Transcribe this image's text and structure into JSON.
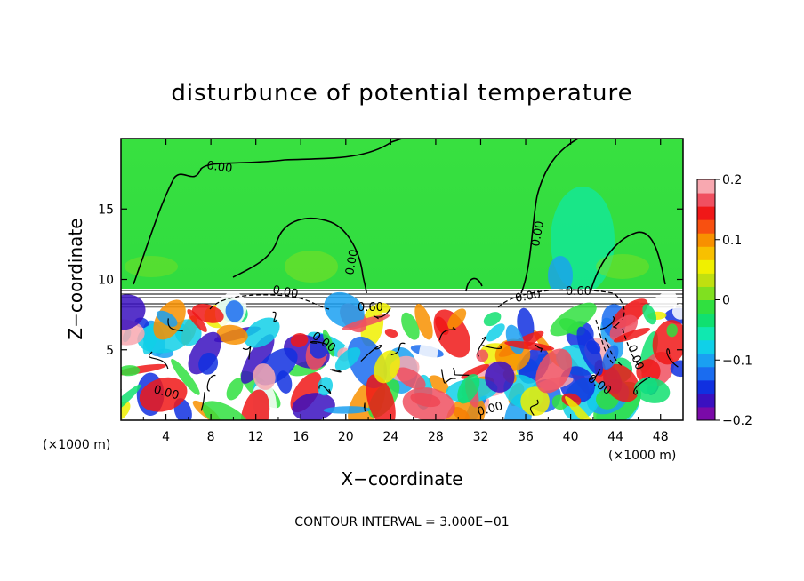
{
  "chart_data": {
    "type": "heatmap",
    "title": "disturbunce of potential temperature",
    "xlabel": "X−coordinate",
    "ylabel": "Z−coordinate",
    "x_unit": "(×1000 m)",
    "z_unit": "(×1000 m)",
    "xlim": [
      0,
      50
    ],
    "ylim": [
      0,
      20
    ],
    "x_ticks": [
      4,
      8,
      12,
      16,
      20,
      24,
      28,
      32,
      36,
      40,
      44,
      48
    ],
    "y_ticks": [
      5,
      10,
      15
    ],
    "x_tick_labels": [
      "4",
      "8",
      "12",
      "16",
      "20",
      "24",
      "28",
      "32",
      "36",
      "40",
      "44",
      "48"
    ],
    "y_tick_labels": [
      "5",
      "10",
      "15"
    ],
    "colorbar": {
      "range": [
        -0.2,
        0.2
      ],
      "ticks": [
        0.2,
        0.1,
        0,
        -0.1,
        -0.2
      ],
      "tick_labels": [
        "0.2",
        "0.1",
        "0",
        "−0.1",
        "−0.2"
      ],
      "colors": [
        "#7a0aa8",
        "#3a10c0",
        "#1030e0",
        "#1a6cf0",
        "#1aa0f2",
        "#10d0e8",
        "#10e8b0",
        "#10e070",
        "#30e040",
        "#80e020",
        "#c0e010",
        "#f0f000",
        "#f8c000",
        "#f89000",
        "#f85010",
        "#f01818",
        "#f05060",
        "#f8a8b0"
      ]
    },
    "contour_labels": [
      "0.00",
      "0.00",
      "0.00",
      "0.00",
      "0.00",
      "0.00",
      "0.60",
      "0.00",
      "0.00",
      "0.00",
      "0.00",
      "0.60"
    ],
    "contour_interval_text": "CONTOUR INTERVAL = 3.000E−01",
    "grid": false,
    "colorbar_placement": "right"
  },
  "colors": {
    "background_upper": "#30e040",
    "frame": "#000000"
  }
}
